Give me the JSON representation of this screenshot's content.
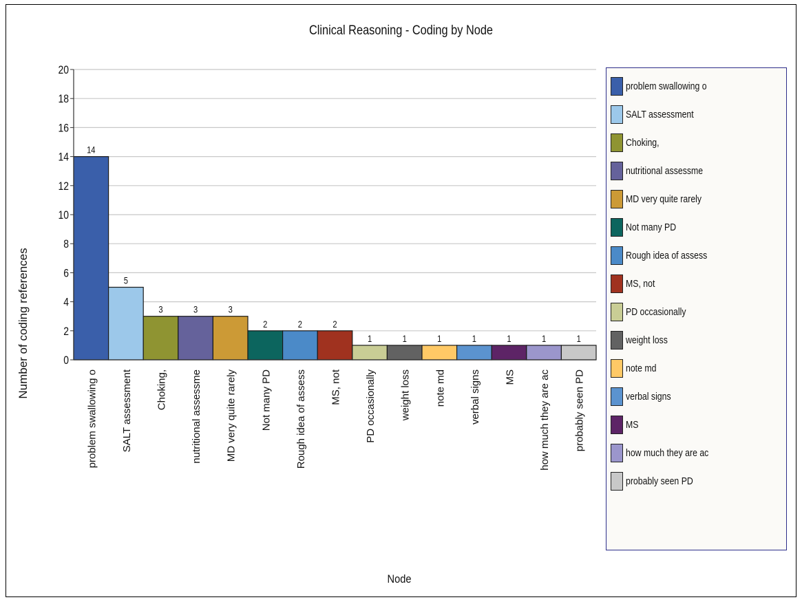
{
  "chart_data": {
    "type": "bar",
    "title": "Clinical Reasoning - Coding by Node",
    "xlabel": "Node",
    "ylabel": "Number of coding references",
    "ylim": [
      0,
      20
    ],
    "yticks": [
      0,
      2,
      4,
      6,
      8,
      10,
      12,
      14,
      16,
      18,
      20
    ],
    "grid": true,
    "legend_position": "right",
    "categories": [
      "problem swallowing o",
      "SALT assessment",
      "Choking,",
      "nutritional assessme",
      "MD very quite rarely",
      "Not many PD",
      "Rough idea of assess",
      "MS, not",
      "PD occasionally",
      "weight loss",
      "note md",
      "verbal signs",
      "MS",
      "how much they are ac",
      "probably seen PD"
    ],
    "values": [
      14,
      5,
      3,
      3,
      3,
      2,
      2,
      2,
      1,
      1,
      1,
      1,
      1,
      1,
      1
    ],
    "colors": [
      "#3a5faa",
      "#9cc8ea",
      "#8f9432",
      "#65629b",
      "#cc9a36",
      "#0c655e",
      "#4b8ac8",
      "#a0321f",
      "#c9cd95",
      "#626262",
      "#ffc966",
      "#5b93cf",
      "#5d2466",
      "#9b96cc",
      "#c8c8c8"
    ]
  }
}
